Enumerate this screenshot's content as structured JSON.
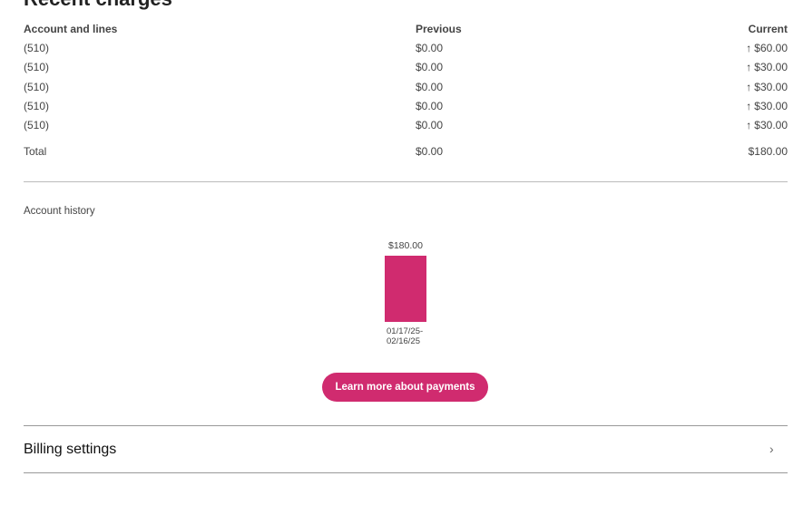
{
  "section_title": "Recent charges",
  "table": {
    "headers": {
      "account": "Account and lines",
      "previous": "Previous",
      "current": "Current"
    },
    "rows": [
      {
        "account": "(510)",
        "previous": "$0.00",
        "current": "$60.00",
        "trend": "up"
      },
      {
        "account": "(510)",
        "previous": "$0.00",
        "current": "$30.00",
        "trend": "up"
      },
      {
        "account": "(510)",
        "previous": "$0.00",
        "current": "$30.00",
        "trend": "up"
      },
      {
        "account": "(510)",
        "previous": "$0.00",
        "current": "$30.00",
        "trend": "up"
      },
      {
        "account": "(510)",
        "previous": "$0.00",
        "current": "$30.00",
        "trend": "up"
      }
    ],
    "total": {
      "label": "Total",
      "previous": "$0.00",
      "current": "$180.00"
    }
  },
  "history": {
    "label": "Account history",
    "chart_data": {
      "type": "bar",
      "categories": [
        "01/17/25-02/16/25"
      ],
      "values": [
        180.0
      ],
      "data_labels": [
        "$180.00"
      ],
      "category_lines": [
        [
          "01/17/25-",
          "02/16/25"
        ]
      ],
      "color": "#d02b6f"
    }
  },
  "learn_more_button": "Learn more about payments",
  "billing_settings": "Billing settings",
  "icons": {
    "trend_up": "arrow-up-icon",
    "chevron": "chevron-right-icon"
  },
  "colors": {
    "accent": "#d02b6f"
  }
}
